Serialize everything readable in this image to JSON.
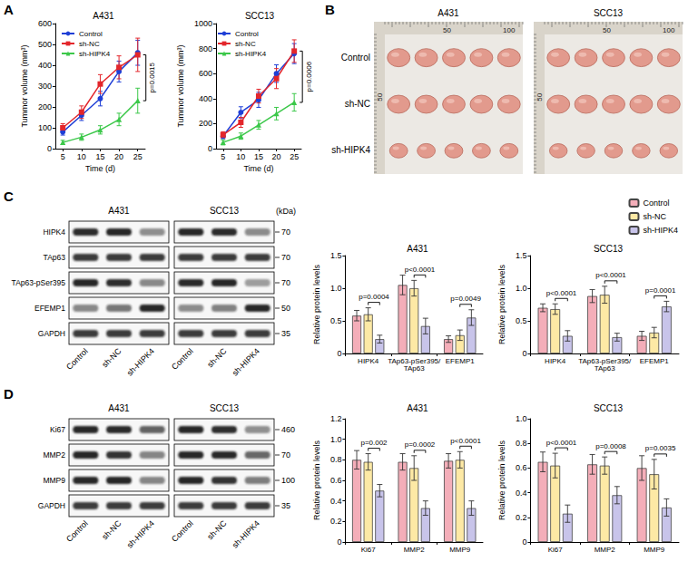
{
  "panel_labels": [
    "A",
    "B",
    "C",
    "D"
  ],
  "chart_data": [
    {
      "type": "line",
      "title": "A431",
      "x_label": "Time (d)",
      "y_label": "Tummor volume (mm³)",
      "x": [
        5,
        10,
        15,
        20,
        25
      ],
      "xlim": [
        3,
        27
      ],
      "xticks": [
        5,
        10,
        15,
        20,
        25
      ],
      "ylim": [
        0,
        600
      ],
      "yticks": [
        0,
        100,
        200,
        300,
        400,
        500,
        600
      ],
      "grid": false,
      "legend": "upper left",
      "series": [
        {
          "name": "Control",
          "color": "#1f3fd6",
          "marker": "circle",
          "values": [
            80,
            160,
            240,
            370,
            460
          ],
          "errors": [
            15,
            25,
            35,
            50,
            60
          ]
        },
        {
          "name": "sh-NC",
          "color": "#e3262b",
          "marker": "square",
          "values": [
            100,
            175,
            310,
            390,
            450
          ],
          "errors": [
            20,
            30,
            45,
            55,
            80
          ]
        },
        {
          "name": "sh-HIPK4",
          "color": "#3cc84a",
          "marker": "triangle",
          "values": [
            30,
            55,
            90,
            140,
            230
          ],
          "errors": [
            10,
            15,
            20,
            30,
            60
          ]
        }
      ],
      "annotations": [
        {
          "text": "p=0.0015",
          "between": [
            "sh-NC",
            "sh-HIPK4"
          ]
        }
      ]
    },
    {
      "type": "line",
      "title": "SCC13",
      "x_label": "Time (d)",
      "y_label": "Tummor volume (mm³)",
      "x": [
        5,
        10,
        15,
        20,
        25
      ],
      "xlim": [
        3,
        27
      ],
      "xticks": [
        5,
        10,
        15,
        20,
        25
      ],
      "ylim": [
        0,
        1000
      ],
      "yticks": [
        0,
        200,
        400,
        600,
        800,
        1000
      ],
      "grid": false,
      "legend": "upper left",
      "series": [
        {
          "name": "Control",
          "color": "#1f3fd6",
          "marker": "circle",
          "values": [
            100,
            290,
            390,
            600,
            760
          ],
          "errors": [
            20,
            45,
            60,
            70,
            80
          ]
        },
        {
          "name": "sh-NC",
          "color": "#e3262b",
          "marker": "square",
          "values": [
            110,
            210,
            420,
            560,
            780
          ],
          "errors": [
            25,
            40,
            55,
            80,
            90
          ]
        },
        {
          "name": "sh-HIPK4",
          "color": "#3cc84a",
          "marker": "triangle",
          "values": [
            50,
            100,
            190,
            280,
            370
          ],
          "errors": [
            20,
            25,
            35,
            50,
            70
          ]
        }
      ],
      "annotations": [
        {
          "text": "p=0.0006",
          "between": [
            "sh-NC",
            "sh-HIPK4"
          ]
        }
      ]
    },
    {
      "type": "bar",
      "title": "A431",
      "y_label": "Relative protein levels",
      "categories": [
        "HIPK4",
        "TAp63-pSer395/TAp63",
        "EFEMP1"
      ],
      "ylim": [
        0,
        1.5
      ],
      "yticks": [
        0,
        0.5,
        {
          "value": 1,
          "label": "1.0"
        },
        1.5
      ],
      "grid": false,
      "series": [
        {
          "name": "Control",
          "color": "#f4aeb9",
          "values": [
            0.58,
            1.05,
            0.22
          ],
          "errors": [
            0.08,
            0.15,
            0.05
          ]
        },
        {
          "name": "sh-NC",
          "color": "#fde9a5",
          "values": [
            0.6,
            1.0,
            0.28
          ],
          "errors": [
            0.1,
            0.12,
            0.08
          ]
        },
        {
          "name": "sh-HIPK4",
          "color": "#c8c4ea",
          "values": [
            0.22,
            0.42,
            0.55
          ],
          "errors": [
            0.06,
            0.12,
            0.12
          ]
        }
      ],
      "annotations": [
        {
          "text": "p=0.0004",
          "category": "HIPK4",
          "between": [
            "sh-NC",
            "sh-HIPK4"
          ]
        },
        {
          "text": "p<0.0001",
          "category": "TAp63-pSer395/TAp63",
          "between": [
            "sh-NC",
            "sh-HIPK4"
          ]
        },
        {
          "text": "p=0.0049",
          "category": "EFEMP1",
          "between": [
            "sh-NC",
            "sh-HIPK4"
          ]
        }
      ]
    },
    {
      "type": "bar",
      "title": "SCC13",
      "y_label": "Relative protein levels",
      "categories": [
        "HIPK4",
        "TAp63-pSer395/TAp63",
        "EFEMP1"
      ],
      "ylim": [
        0,
        1.5
      ],
      "yticks": [
        0,
        0.5,
        {
          "value": 1,
          "label": "1.0"
        },
        1.5
      ],
      "grid": false,
      "legend": "upper right",
      "series": [
        {
          "name": "Control",
          "color": "#f4aeb9",
          "values": [
            0.7,
            0.88,
            0.27
          ],
          "errors": [
            0.06,
            0.1,
            0.07
          ]
        },
        {
          "name": "sh-NC",
          "color": "#fde9a5",
          "values": [
            0.68,
            0.9,
            0.32
          ],
          "errors": [
            0.08,
            0.13,
            0.08
          ]
        },
        {
          "name": "sh-HIPK4",
          "color": "#c8c4ea",
          "values": [
            0.27,
            0.25,
            0.72
          ],
          "errors": [
            0.08,
            0.06,
            0.08
          ]
        }
      ],
      "annotations": [
        {
          "text": "p<0.0001",
          "category": "HIPK4",
          "between": [
            "sh-NC",
            "sh-HIPK4"
          ]
        },
        {
          "text": "p<0.0001",
          "category": "TAp63-pSer395/TAp63",
          "between": [
            "sh-NC",
            "sh-HIPK4"
          ]
        },
        {
          "text": "p=0.0001",
          "category": "EFEMP1",
          "between": [
            "sh-NC",
            "sh-HIPK4"
          ]
        }
      ]
    },
    {
      "type": "bar",
      "title": "A431",
      "y_label": "Relative protein levels",
      "categories": [
        "Ki67",
        "MMP2",
        "MMP9"
      ],
      "ylim": [
        0,
        1.2
      ],
      "yticks": [
        0,
        0.2,
        0.4,
        0.6,
        0.8,
        {
          "value": 1,
          "label": "1.0"
        },
        1.2
      ],
      "grid": false,
      "series": [
        {
          "name": "Control",
          "color": "#f4aeb9",
          "values": [
            0.8,
            0.78,
            0.79
          ],
          "errors": [
            0.09,
            0.08,
            0.07
          ]
        },
        {
          "name": "sh-NC",
          "color": "#fde9a5",
          "values": [
            0.78,
            0.72,
            0.8
          ],
          "errors": [
            0.08,
            0.12,
            0.08
          ]
        },
        {
          "name": "sh-HIPK4",
          "color": "#c8c4ea",
          "values": [
            0.5,
            0.33,
            0.33
          ],
          "errors": [
            0.06,
            0.07,
            0.07
          ]
        }
      ],
      "annotations": [
        {
          "text": "p=0.002",
          "category": "Ki67",
          "between": [
            "sh-NC",
            "sh-HIPK4"
          ]
        },
        {
          "text": "p=0.0002",
          "category": "MMP2",
          "between": [
            "sh-NC",
            "sh-HIPK4"
          ]
        },
        {
          "text": "p<0.0001",
          "category": "MMP9",
          "between": [
            "sh-NC",
            "sh-HIPK4"
          ]
        }
      ]
    },
    {
      "type": "bar",
      "title": "SCC13",
      "y_label": "Relative protein levels",
      "categories": [
        "Ki67",
        "MMP2",
        "MMP9"
      ],
      "ylim": [
        0,
        1
      ],
      "yticks": [
        0,
        0.2,
        0.4,
        0.6,
        0.8,
        {
          "value": 1,
          "label": "1.0"
        }
      ],
      "grid": false,
      "series": [
        {
          "name": "Control",
          "color": "#f4aeb9",
          "values": [
            0.65,
            0.63,
            0.6
          ],
          "errors": [
            0.08,
            0.08,
            0.1
          ]
        },
        {
          "name": "sh-NC",
          "color": "#fde9a5",
          "values": [
            0.62,
            0.62,
            0.55
          ],
          "errors": [
            0.1,
            0.07,
            0.12
          ]
        },
        {
          "name": "sh-HIPK4",
          "color": "#c8c4ea",
          "values": [
            0.23,
            0.38,
            0.28
          ],
          "errors": [
            0.07,
            0.07,
            0.07
          ]
        }
      ],
      "annotations": [
        {
          "text": "p<0.0001",
          "category": "Ki67",
          "between": [
            "sh-NC",
            "sh-HIPK4"
          ]
        },
        {
          "text": "p=0.0008",
          "category": "MMP2",
          "between": [
            "sh-NC",
            "sh-HIPK4"
          ]
        },
        {
          "text": "p=0.0035",
          "category": "MMP9",
          "between": [
            "sh-NC",
            "sh-HIPK4"
          ]
        }
      ]
    }
  ],
  "photos": {
    "cell_lines": [
      "A431",
      "SCC13"
    ],
    "rows": [
      "Control",
      "sh-NC",
      "sh-HIPK4"
    ],
    "tumors_per_row": 5,
    "ruler_labels": [
      "50",
      "100"
    ],
    "side_ruler_label": "50"
  },
  "blots": [
    {
      "cell_lines": [
        "A431",
        "SCC13"
      ],
      "lanes": [
        "Control",
        "sh-NC",
        "sh-HIPK4"
      ],
      "rows": [
        "HIPK4",
        "TAp63",
        "TAp63-pSer395",
        "EFEMP1",
        "GAPDH"
      ],
      "unit": "(kDa)",
      "markers": [
        {
          "row": "HIPK4",
          "label": "70"
        },
        {
          "row": "TAp63",
          "label": "70"
        },
        {
          "row": "TAp63-pSer395",
          "label": "70"
        },
        {
          "row": "EFEMP1",
          "label": "50"
        },
        {
          "row": "GAPDH",
          "label": "35"
        }
      ]
    },
    {
      "cell_lines": [
        "A431",
        "SCC13"
      ],
      "lanes": [
        "Control",
        "sh-NC",
        "sh-HIPK4"
      ],
      "rows": [
        "Ki67",
        "MMP2",
        "MMP9",
        "GAPDH"
      ],
      "markers": [
        {
          "row": "Ki67",
          "label": "460"
        },
        {
          "row": "MMP2",
          "label": "70"
        },
        {
          "row": "MMP9",
          "label": "100"
        },
        {
          "row": "GAPDH",
          "label": "35"
        }
      ]
    }
  ]
}
